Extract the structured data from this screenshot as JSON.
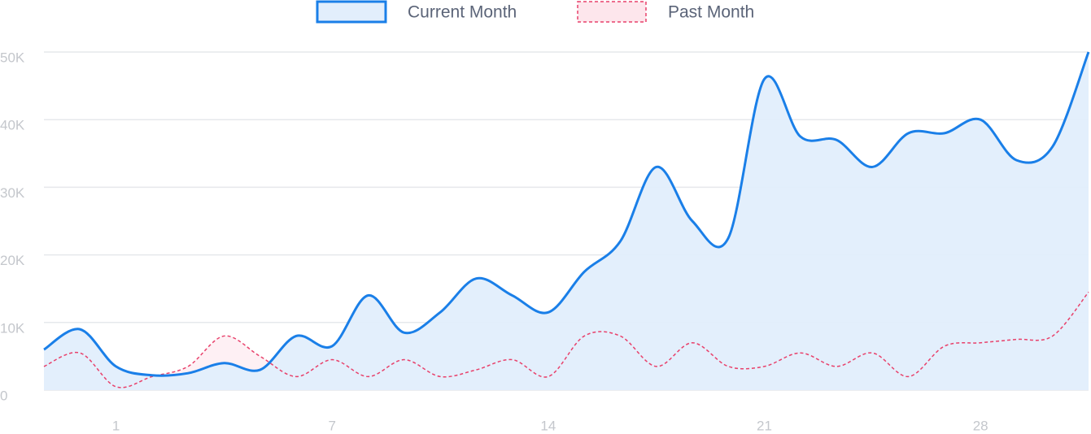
{
  "chart_data": {
    "type": "area",
    "categories": [
      null,
      null,
      "1",
      null,
      null,
      null,
      null,
      null,
      "7",
      null,
      null,
      null,
      null,
      null,
      "14",
      null,
      null,
      null,
      null,
      null,
      "21",
      null,
      null,
      null,
      null,
      null,
      "28",
      null,
      null,
      null
    ],
    "series": [
      {
        "name": "Current Month",
        "color": "#1a7fe8",
        "fill": "#e2eefc",
        "dashed": false,
        "values": [
          6000,
          9000,
          3500,
          2200,
          2500,
          4000,
          3000,
          8000,
          6500,
          14000,
          8500,
          11500,
          16500,
          14000,
          11500,
          17500,
          22000,
          33000,
          25000,
          22500,
          46000,
          37500,
          37000,
          33000,
          38000,
          38000,
          40000,
          34000,
          36000,
          50000
        ]
      },
      {
        "name": "Past Month",
        "color": "#e8416b",
        "fill": "#fde6ec",
        "dashed": true,
        "values": [
          3500,
          5500,
          500,
          2000,
          3500,
          8000,
          5000,
          2000,
          4500,
          2000,
          4500,
          2000,
          3000,
          4500,
          2000,
          8000,
          8000,
          3500,
          7000,
          3500,
          3500,
          5500,
          3500,
          5500,
          2000,
          6500,
          7000,
          7500,
          8000,
          14500
        ]
      }
    ],
    "ylim": [
      0,
      50000
    ],
    "yticks": [
      0,
      {
        "value": 10000,
        "label": "10K"
      },
      {
        "value": 20000,
        "label": "20K"
      },
      {
        "value": 30000,
        "label": "30K"
      },
      {
        "value": 40000,
        "label": "40K"
      },
      {
        "value": 50000,
        "label": "50K"
      }
    ],
    "grid": true,
    "legend": "top"
  }
}
